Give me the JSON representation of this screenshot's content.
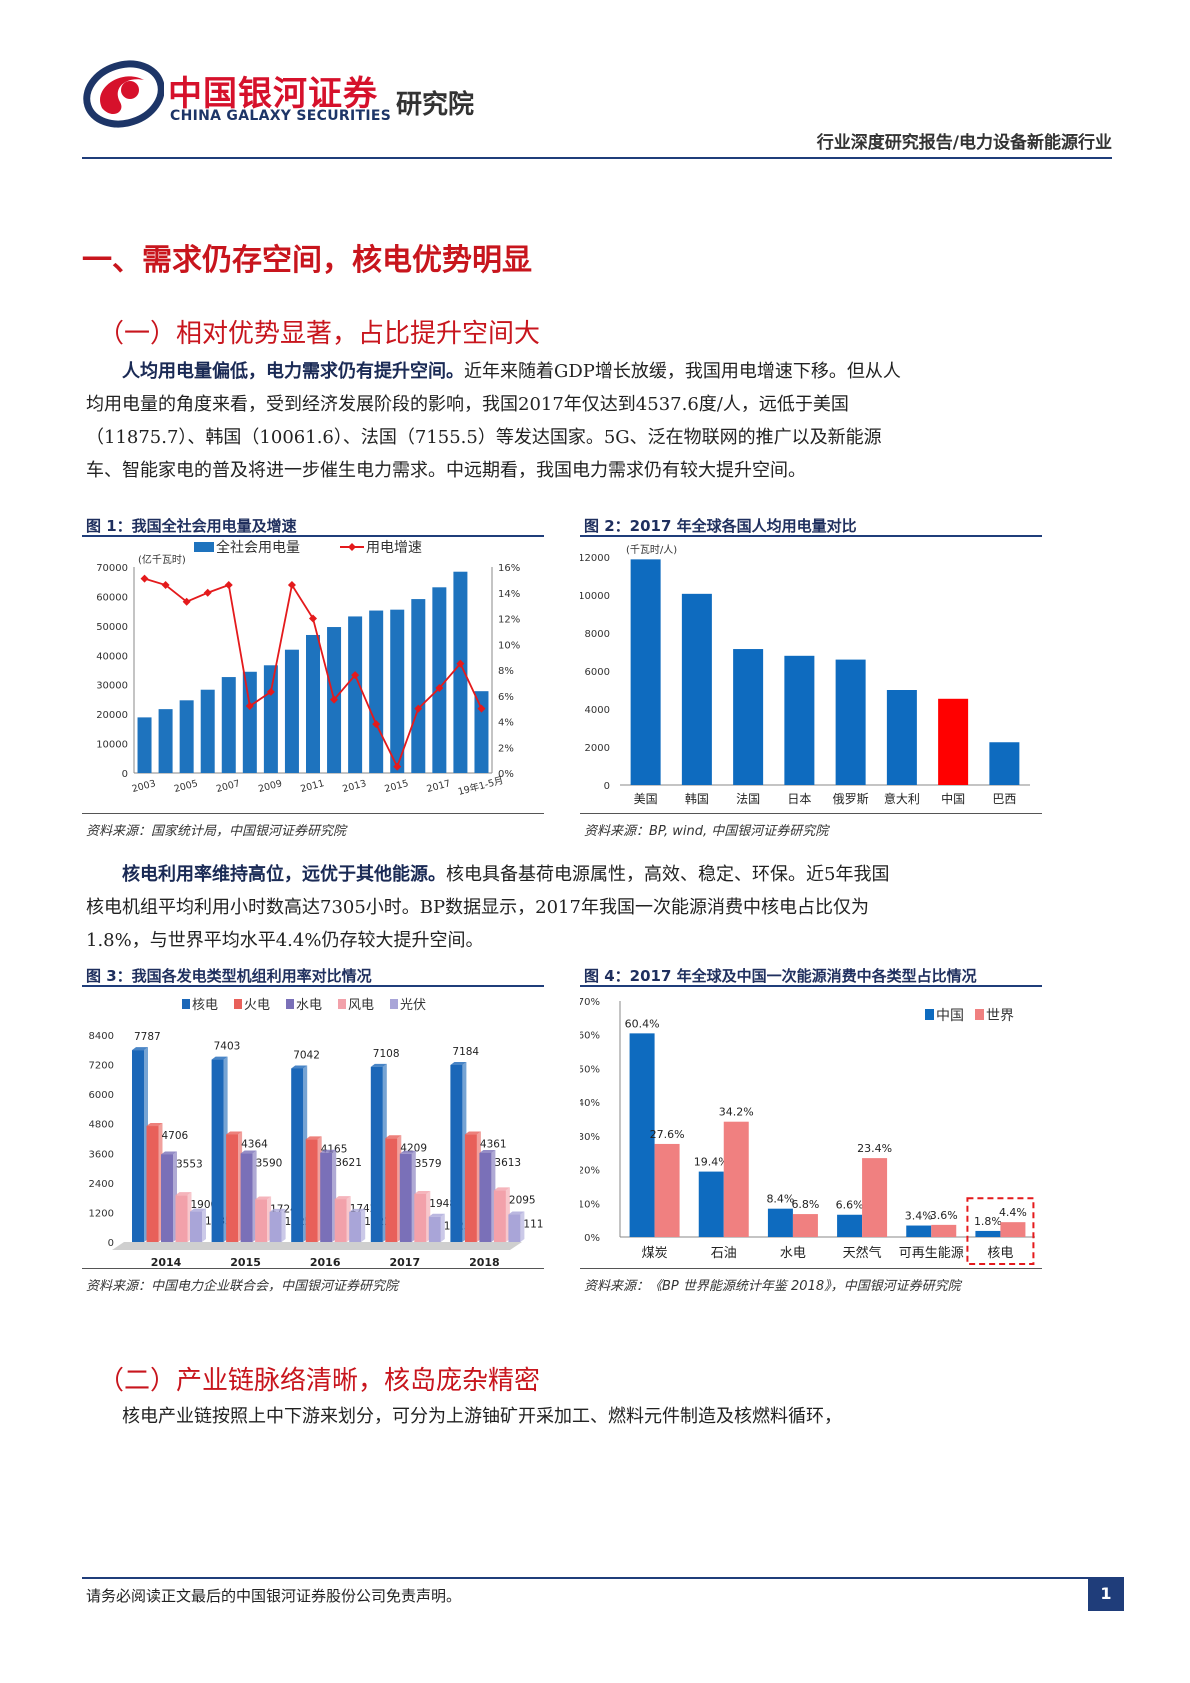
{
  "header": {
    "logo_cn": "中国银河证券",
    "logo_en": "CHINA GALAXY SECURITIES",
    "logo_inst": "研究院",
    "report_type": "行业深度研究报告/电力设备新能源行业"
  },
  "section1": {
    "title": "一、需求仍存空间，核电优势明显"
  },
  "sub1": {
    "title": "（一）相对优势显著，占比提升空间大"
  },
  "para1": {
    "bold": "人均用电量偏低，电力需求仍有提升空间。",
    "text": "近年来随着GDP增长放缓，我国用电增速下移。但从人均用电量的角度来看，受到经济发展阶段的影响，我国2017年仅达到4537.6度/人，远低于美国（11875.7）、韩国（10061.6）、法国（7155.5）等发达国家。5G、泛在物联网的推广以及新能源车、智能家电的普及将进一步催生电力需求。中远期看，我国电力需求仍有较大提升空间。"
  },
  "para2": {
    "bold": "核电利用率维持高位，远优于其他能源。",
    "text": "核电具备基荷电源属性，高效、稳定、环保。近5年我国核电机组平均利用小时数高达7305小时。BP数据显示，2017年我国一次能源消费中核电占比仅为1.8%，与世界平均水平4.4%仍存较大提升空间。"
  },
  "sub2": {
    "title": "（二）产业链脉络清晰，核岛庞杂精密"
  },
  "para3": {
    "text": "核电产业链按照上中下游来划分，可分为上游铀矿开采加工、燃料元件制造及核燃料循环，"
  },
  "figures": {
    "fig1": {
      "title": "图 1：我国全社会用电量及增速",
      "source": "资料来源：国家统计局，中国银河证券研究院"
    },
    "fig2": {
      "title": "图 2：2017 年全球各国人均用电量对比",
      "source": "资料来源：BP, wind, 中国银河证券研究院"
    },
    "fig3": {
      "title": "图 3：我国各发电类型机组利用率对比情况",
      "source": "资料来源：中国电力企业联合会，中国银河证券研究院"
    },
    "fig4": {
      "title": "图 4：2017 年全球及中国一次能源消费中各类型占比情况",
      "source": "资料来源：《BP 世界能源统计年鉴 2018》，中国银河证券研究院"
    }
  },
  "footer": {
    "disclaimer": "请务必阅读正文最后的中国银河证券股份公司免责声明。",
    "page": "1"
  },
  "chart_data": [
    {
      "type": "bar",
      "title": "图 1：我国全社会用电量及增速",
      "unit_label": "(亿千瓦时)",
      "categories": [
        "2003",
        "2004",
        "2005",
        "2006",
        "2007",
        "2008",
        "2009",
        "2010",
        "2011",
        "2012",
        "2013",
        "2014",
        "2015",
        "2016",
        "2017",
        "2018",
        "19年1-5月"
      ],
      "x_tick_labels": [
        "2003",
        "2005",
        "2007",
        "2009",
        "2011",
        "2013",
        "2015",
        "2017",
        "19年1-5月"
      ],
      "series": [
        {
          "name": "全社会用电量",
          "type": "bar",
          "axis": "left",
          "values": [
            18900,
            21700,
            24700,
            28300,
            32600,
            34400,
            36600,
            41900,
            46900,
            49600,
            53200,
            55200,
            55500,
            59100,
            63100,
            68400,
            27800
          ]
        },
        {
          "name": "用电增速",
          "type": "line",
          "axis": "right",
          "values": [
            15.1,
            14.6,
            13.3,
            14.0,
            14.6,
            5.2,
            6.3,
            14.6,
            12.0,
            5.7,
            7.6,
            3.8,
            0.5,
            5.0,
            6.6,
            8.5,
            5.0
          ]
        }
      ],
      "ylim_left": [
        0,
        70000
      ],
      "yticks_left": [
        "0",
        "10000",
        "20000",
        "30000",
        "40000",
        "50000",
        "60000",
        "70000"
      ],
      "ylim_right": [
        0,
        16
      ],
      "yticks_right": [
        "0%",
        "2%",
        "4%",
        "6%",
        "8%",
        "10%",
        "12%",
        "14%",
        "16%"
      ],
      "legend": "top"
    },
    {
      "type": "bar",
      "title": "图 2：2017 年全球各国人均用电量对比",
      "unit_label": "(千瓦时/人)",
      "categories": [
        "美国",
        "韩国",
        "法国",
        "日本",
        "俄罗斯",
        "意大利",
        "中国",
        "巴西"
      ],
      "values": [
        11875.7,
        10061.6,
        7155.5,
        6800,
        6600,
        5000,
        4537.6,
        2250
      ],
      "colors": [
        "#0e6bbf",
        "#0e6bbf",
        "#0e6bbf",
        "#0e6bbf",
        "#0e6bbf",
        "#0e6bbf",
        "#ff0000",
        "#0e6bbf"
      ],
      "ylim": [
        0,
        12000
      ],
      "yticks": [
        "0",
        "2000",
        "4000",
        "6000",
        "8000",
        "10000",
        "12000"
      ]
    },
    {
      "type": "bar",
      "title": "图 3：我国各发电类型机组利用率对比情况",
      "categories": [
        "2014",
        "2015",
        "2016",
        "2017",
        "2018"
      ],
      "series": [
        {
          "name": "核电",
          "color": "#1b67b8",
          "values": [
            7787,
            7403,
            7042,
            7108,
            7184
          ]
        },
        {
          "name": "火电",
          "color": "#e8605a",
          "values": [
            4706,
            4364,
            4165,
            4209,
            4361
          ]
        },
        {
          "name": "水电",
          "color": "#7a70b8",
          "values": [
            3553,
            3590,
            3621,
            3579,
            3613
          ]
        },
        {
          "name": "风电",
          "color": "#f2a1aa",
          "values": [
            1900,
            1724,
            1742,
            1948,
            2095
          ]
        },
        {
          "name": "光伏",
          "color": "#a9a5d8",
          "values": [
            1235,
            1225,
            1222,
            1025,
            1115
          ]
        }
      ],
      "ylim": [
        0,
        8400
      ],
      "yticks": [
        "0",
        "1200",
        "2400",
        "3600",
        "4800",
        "6000",
        "7200",
        "8400"
      ],
      "legend": "top"
    },
    {
      "type": "bar",
      "title": "图 4：2017 年全球及中国一次能源消费中各类型占比情况",
      "categories": [
        "煤炭",
        "石油",
        "水电",
        "天然气",
        "可再生能源",
        "核电"
      ],
      "series": [
        {
          "name": "中国",
          "color": "#0e6bbf",
          "values": [
            60.4,
            19.4,
            8.4,
            6.6,
            3.4,
            1.8
          ],
          "labels": [
            "60.4%",
            "19.4%",
            "8.4%",
            "6.6%",
            "3.4%",
            "1.8%"
          ]
        },
        {
          "name": "世界",
          "color": "#f08080",
          "values": [
            27.6,
            34.2,
            6.8,
            23.4,
            3.6,
            4.4
          ],
          "labels": [
            "27.6%",
            "34.2%",
            "6.8%",
            "23.4%",
            "3.6%",
            "4.4%"
          ]
        }
      ],
      "ylim": [
        0,
        70
      ],
      "yticks": [
        "0%",
        "10%",
        "20%",
        "30%",
        "40%",
        "50%",
        "60%",
        "70%"
      ],
      "highlight_category": "核电",
      "legend": "top-right"
    }
  ]
}
